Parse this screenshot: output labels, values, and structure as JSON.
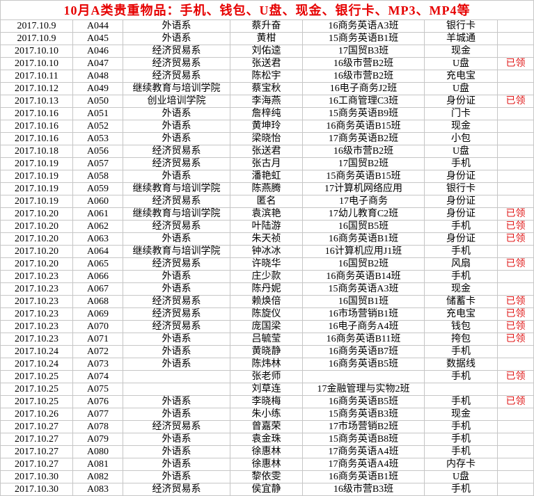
{
  "title": "10月A类贵重物品：手机、钱包、U盘、现金、银行卡、MP3、MP4等",
  "colors": {
    "title_red": "#e60000",
    "status_red": "#e01818",
    "gridline": "#c6c6c6",
    "background": "#ffffff",
    "text": "#000000"
  },
  "status_claimed_label": "已领",
  "table": {
    "rows": [
      [
        "2017.10.9",
        "A044",
        "外语系",
        "蔡升奋",
        "16商务英语A3班",
        "银行卡",
        ""
      ],
      [
        "2017.10.9",
        "A045",
        "外语系",
        "黄柑",
        "15商务英语B1班",
        "羊城通",
        ""
      ],
      [
        "2017.10.10",
        "A046",
        "经济贸易系",
        "刘佑逵",
        "17国贸B3班",
        "现金",
        ""
      ],
      [
        "2017.10.10",
        "A047",
        "经济贸易系",
        "张送君",
        "16级市营B2班",
        "U盘",
        "已领"
      ],
      [
        "2017.10.11",
        "A048",
        "经济贸易系",
        "陈松宇",
        "16级市营B2班",
        "充电宝",
        ""
      ],
      [
        "2017.10.12",
        "A049",
        "继续教育与培训学院",
        "蔡宝秋",
        "16电子商务J2班",
        "U盘",
        ""
      ],
      [
        "2017.10.13",
        "A050",
        "创业培训学院",
        "李海燕",
        "16工商管理C3班",
        "身份证",
        "已领"
      ],
      [
        "2017.10.16",
        "A051",
        "外语系",
        "詹梓纯",
        "15商务英语B9班",
        "门卡",
        ""
      ],
      [
        "2017.10.16",
        "A052",
        "外语系",
        "黄坤玲",
        "16商务英语B15班",
        "现金",
        ""
      ],
      [
        "2017.10.16",
        "A053",
        "外语系",
        "梁晓怡",
        "17商务英语B2班",
        "小包",
        ""
      ],
      [
        "2017.10.18",
        "A056",
        "经济贸易系",
        "张送君",
        "16级市营B2班",
        "U盘",
        ""
      ],
      [
        "2017.10.19",
        "A057",
        "经济贸易系",
        "张古月",
        "17国贸B2班",
        "手机",
        ""
      ],
      [
        "2017.10.19",
        "A058",
        "外语系",
        "潘艳虹",
        "15商务英语B15班",
        "身份证",
        ""
      ],
      [
        "2017.10.19",
        "A059",
        "继续教育与培训学院",
        "陈燕腾",
        "17计算机网络应用",
        "银行卡",
        ""
      ],
      [
        "2017.10.19",
        "A060",
        "经济贸易系",
        "匿名",
        "17电子商务",
        "身份证",
        ""
      ],
      [
        "2017.10.20",
        "A061",
        "继续教育与培训学院",
        "袁滨艳",
        "17幼儿教育C2班",
        "身份证",
        "已领"
      ],
      [
        "2017.10.20",
        "A062",
        "经济贸易系",
        "叶陆游",
        "16国贸B5班",
        "手机",
        "已领"
      ],
      [
        "2017.10.20",
        "A063",
        "外语系",
        "朱天祯",
        "16商务英语B1班",
        "身份证",
        "已领"
      ],
      [
        "2017.10.20",
        "A064",
        "继续教育与培训学院",
        "钟冰冰",
        "16计算机应用J1班",
        "手机",
        ""
      ],
      [
        "2017.10.20",
        "A065",
        "经济贸易系",
        "许晓华",
        "16国贸B2班",
        "风扇",
        "已领"
      ],
      [
        "2017.10.23",
        "A066",
        "外语系",
        "庄少款",
        "16商务英语B14班",
        "手机",
        ""
      ],
      [
        "2017.10.23",
        "A067",
        "外语系",
        "陈丹妮",
        "15商务英语A3班",
        "现金",
        ""
      ],
      [
        "2017.10.23",
        "A068",
        "经济贸易系",
        "赖焕倍",
        "16国贸B1班",
        "储蓄卡",
        "已领"
      ],
      [
        "2017.10.23",
        "A069",
        "经济贸易系",
        "陈旋仪",
        "16市场营销B1班",
        "充电宝",
        "已领"
      ],
      [
        "2017.10.23",
        "A070",
        "经济贸易系",
        "庞国梁",
        "16电子商务A4班",
        "钱包",
        "已领"
      ],
      [
        "2017.10.23",
        "A071",
        "外语系",
        "吕毓莹",
        "16商务英语B11班",
        "挎包",
        "已领"
      ],
      [
        "2017.10.24",
        "A072",
        "外语系",
        "黄晓静",
        "16商务英语B7班",
        "手机",
        ""
      ],
      [
        "2017.10.24",
        "A073",
        "外语系",
        "陈炜林",
        "16商务英语B5班",
        "数据线",
        ""
      ],
      [
        "2017.10.25",
        "A074",
        "",
        "张老师",
        "",
        "手机",
        "已领"
      ],
      [
        "2017.10.25",
        "A075",
        "",
        "刘草连",
        "17金融管理与实物2班",
        "",
        ""
      ],
      [
        "2017.10.25",
        "A076",
        "外语系",
        "李晓梅",
        "16商务英语B5班",
        "手机",
        "已领"
      ],
      [
        "2017.10.26",
        "A077",
        "外语系",
        "朱小练",
        "15商务英语B3班",
        "现金",
        ""
      ],
      [
        "2017.10.27",
        "A078",
        "经济贸易系",
        "曾嘉荣",
        "17市场营销B2班",
        "手机",
        ""
      ],
      [
        "2017.10.27",
        "A079",
        "外语系",
        "袁金珠",
        "15商务英语B8班",
        "手机",
        ""
      ],
      [
        "2017.10.27",
        "A080",
        "外语系",
        "徐惠林",
        "17商务英语A4班",
        "手机",
        ""
      ],
      [
        "2017.10.27",
        "A081",
        "外语系",
        "徐惠林",
        "17商务英语A4班",
        "内存卡",
        ""
      ],
      [
        "2017.10.30",
        "A082",
        "外语系",
        "黎依雯",
        "16商务英语B1班",
        "U盘",
        ""
      ],
      [
        "2017.10.30",
        "A083",
        "经济贸易系",
        "侯宜静",
        "16级市营B3班",
        "手机",
        ""
      ]
    ]
  }
}
